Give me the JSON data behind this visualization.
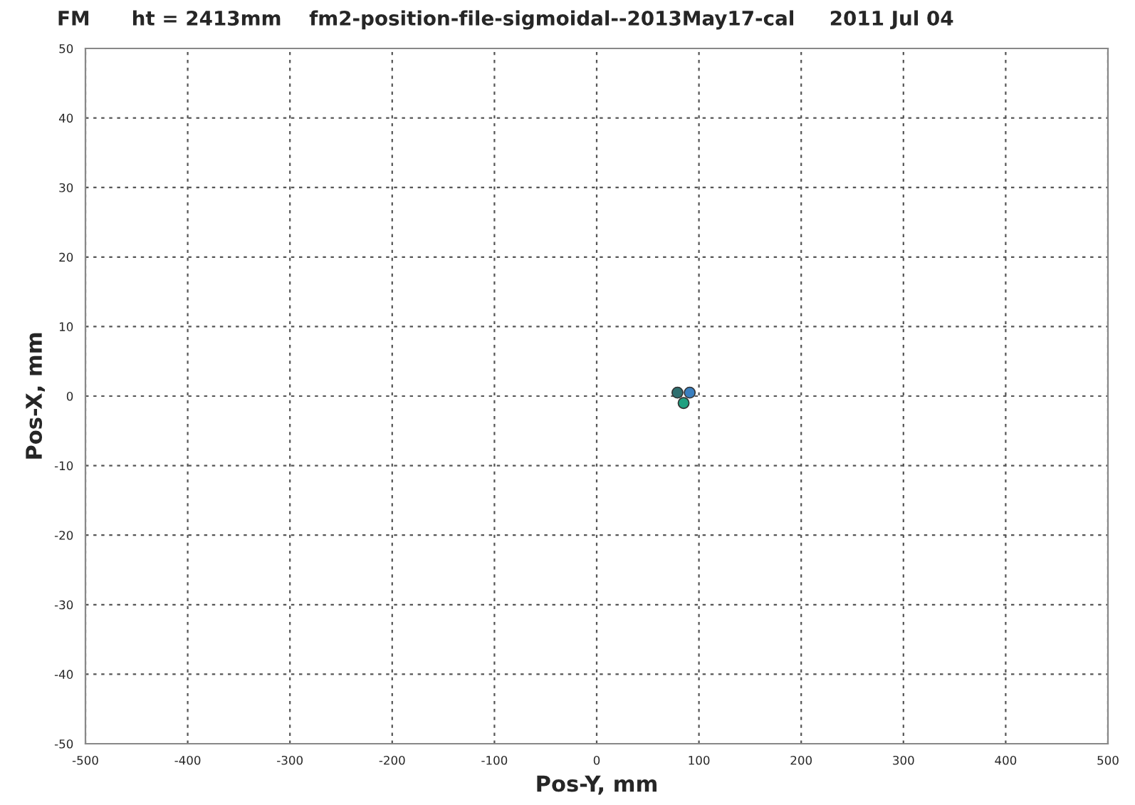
{
  "chart_data": {
    "type": "scatter",
    "title": "FM      ht = 2413mm    fm2-position-file-sigmoidal--2013May17-cal     2011 Jul 04",
    "xlabel": "Pos-Y, mm",
    "ylabel": "Pos-X, mm",
    "x": [
      79,
      91,
      85
    ],
    "values": [
      0.5,
      0.5,
      -1
    ],
    "colors": [
      "#2f6f6f",
      "#3a7fbf",
      "#20a080"
    ],
    "xlim": [
      -500,
      500
    ],
    "xticks": [
      -500,
      -400,
      -300,
      -200,
      -100,
      0,
      100,
      200,
      300,
      400,
      500
    ],
    "ylim": [
      -50,
      50
    ],
    "yticks": [
      -50,
      -40,
      -30,
      -20,
      -10,
      0,
      10,
      20,
      30,
      40,
      50
    ],
    "grid": true,
    "marker": "circle"
  }
}
